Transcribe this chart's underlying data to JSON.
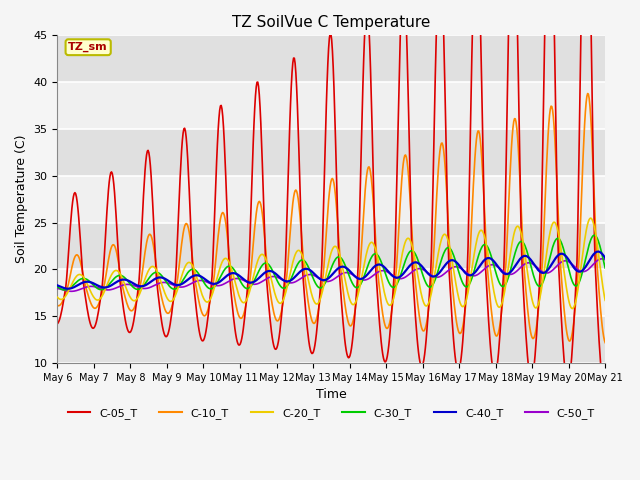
{
  "title": "TZ SoilVue C Temperature",
  "xlabel": "Time",
  "ylabel": "Soil Temperature (C)",
  "ylim": [
    10,
    45
  ],
  "yticks": [
    10,
    15,
    20,
    25,
    30,
    35,
    40,
    45
  ],
  "annotation_text": "TZ_sm",
  "annotation_color": "#aa0000",
  "annotation_bg": "#ffffcc",
  "annotation_border": "#bbbb00",
  "series_colors": {
    "C-05_T": "#dd0000",
    "C-10_T": "#ff8800",
    "C-20_T": "#eecc00",
    "C-30_T": "#00cc00",
    "C-40_T": "#0000cc",
    "C-50_T": "#9900cc"
  },
  "bg_color": "#f5f5f5",
  "plot_bg": "#f0f0f0",
  "band_color": "#e0e0e0",
  "grid_color": "#ffffff"
}
